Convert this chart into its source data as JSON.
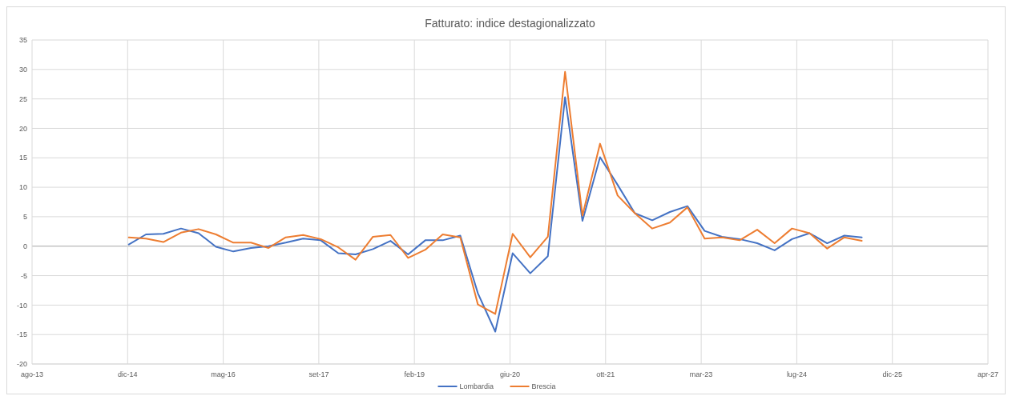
{
  "chart_data": {
    "type": "line",
    "title": "Fatturato: indice destagionalizzato",
    "x": [
      "2014-12-31",
      "2015-03-31",
      "2015-06-30",
      "2015-09-30",
      "2015-12-31",
      "2016-03-31",
      "2016-06-30",
      "2016-09-30",
      "2016-12-31",
      "2017-03-31",
      "2017-06-30",
      "2017-09-30",
      "2017-12-31",
      "2018-03-31",
      "2018-06-30",
      "2018-09-30",
      "2018-12-31",
      "2019-03-31",
      "2019-06-30",
      "2019-09-30",
      "2019-12-31",
      "2020-03-31",
      "2020-06-30",
      "2020-09-30",
      "2020-12-31",
      "2021-03-31",
      "2021-06-30",
      "2021-09-30",
      "2021-12-31",
      "2022-03-31",
      "2022-06-30",
      "2022-09-30",
      "2022-12-31",
      "2023-03-31",
      "2023-06-30",
      "2023-09-30",
      "2023-12-31",
      "2024-03-31",
      "2024-06-30",
      "2024-09-30",
      "2024-12-31",
      "2025-03-31",
      "2025-06-30"
    ],
    "series": [
      {
        "name": "Lombardia",
        "color": "#4472c4",
        "values": [
          0.3,
          2.0,
          2.1,
          3.0,
          2.2,
          -0.1,
          -0.9,
          -0.3,
          0.0,
          0.6,
          1.3,
          1.0,
          -1.2,
          -1.4,
          -0.5,
          0.9,
          -1.4,
          1.0,
          1.0,
          1.8,
          -8.0,
          -14.5,
          -1.2,
          -4.6,
          -1.7,
          25.3,
          4.3,
          15.1,
          10.4,
          5.6,
          4.4,
          5.8,
          6.8,
          2.6,
          1.6,
          1.2,
          0.5,
          -0.7,
          1.2,
          2.2,
          0.5,
          1.8,
          1.5
        ]
      },
      {
        "name": "Brescia",
        "color": "#ed7d31",
        "values": [
          1.5,
          1.3,
          0.7,
          2.3,
          2.9,
          2.0,
          0.6,
          0.6,
          -0.3,
          1.5,
          1.9,
          1.2,
          -0.2,
          -2.3,
          1.6,
          1.9,
          -2.0,
          -0.6,
          2.0,
          1.5,
          -9.9,
          -11.5,
          2.1,
          -1.9,
          1.6,
          29.6,
          5.2,
          17.4,
          8.6,
          5.6,
          3.0,
          4.0,
          6.6,
          1.3,
          1.5,
          1.0,
          2.8,
          0.5,
          3.0,
          2.2,
          -0.4,
          1.5,
          0.9
        ]
      }
    ],
    "xlim": [
      "2013-08-12",
      "2027-04-21"
    ],
    "xticks": [
      {
        "value": "2013-08-12",
        "label": "ago-13"
      },
      {
        "value": "2014-12-25",
        "label": "dic-14"
      },
      {
        "value": "2016-05-08",
        "label": "mag-16"
      },
      {
        "value": "2017-09-20",
        "label": "set-17"
      },
      {
        "value": "2019-02-02",
        "label": "feb-19"
      },
      {
        "value": "2020-06-16",
        "label": "giu-20"
      },
      {
        "value": "2021-10-29",
        "label": "ott-21"
      },
      {
        "value": "2023-03-13",
        "label": "mar-23"
      },
      {
        "value": "2024-07-25",
        "label": "lug-24"
      },
      {
        "value": "2025-12-07",
        "label": "dic-25"
      },
      {
        "value": "2027-04-21",
        "label": "apr-27"
      }
    ],
    "ylim": [
      -20,
      35
    ],
    "yticks": [
      -20,
      -15,
      -10,
      -5,
      0,
      5,
      10,
      15,
      20,
      25,
      30,
      35
    ],
    "grid": true,
    "legend": "bottom",
    "marker": "none",
    "line_style": "solid"
  }
}
